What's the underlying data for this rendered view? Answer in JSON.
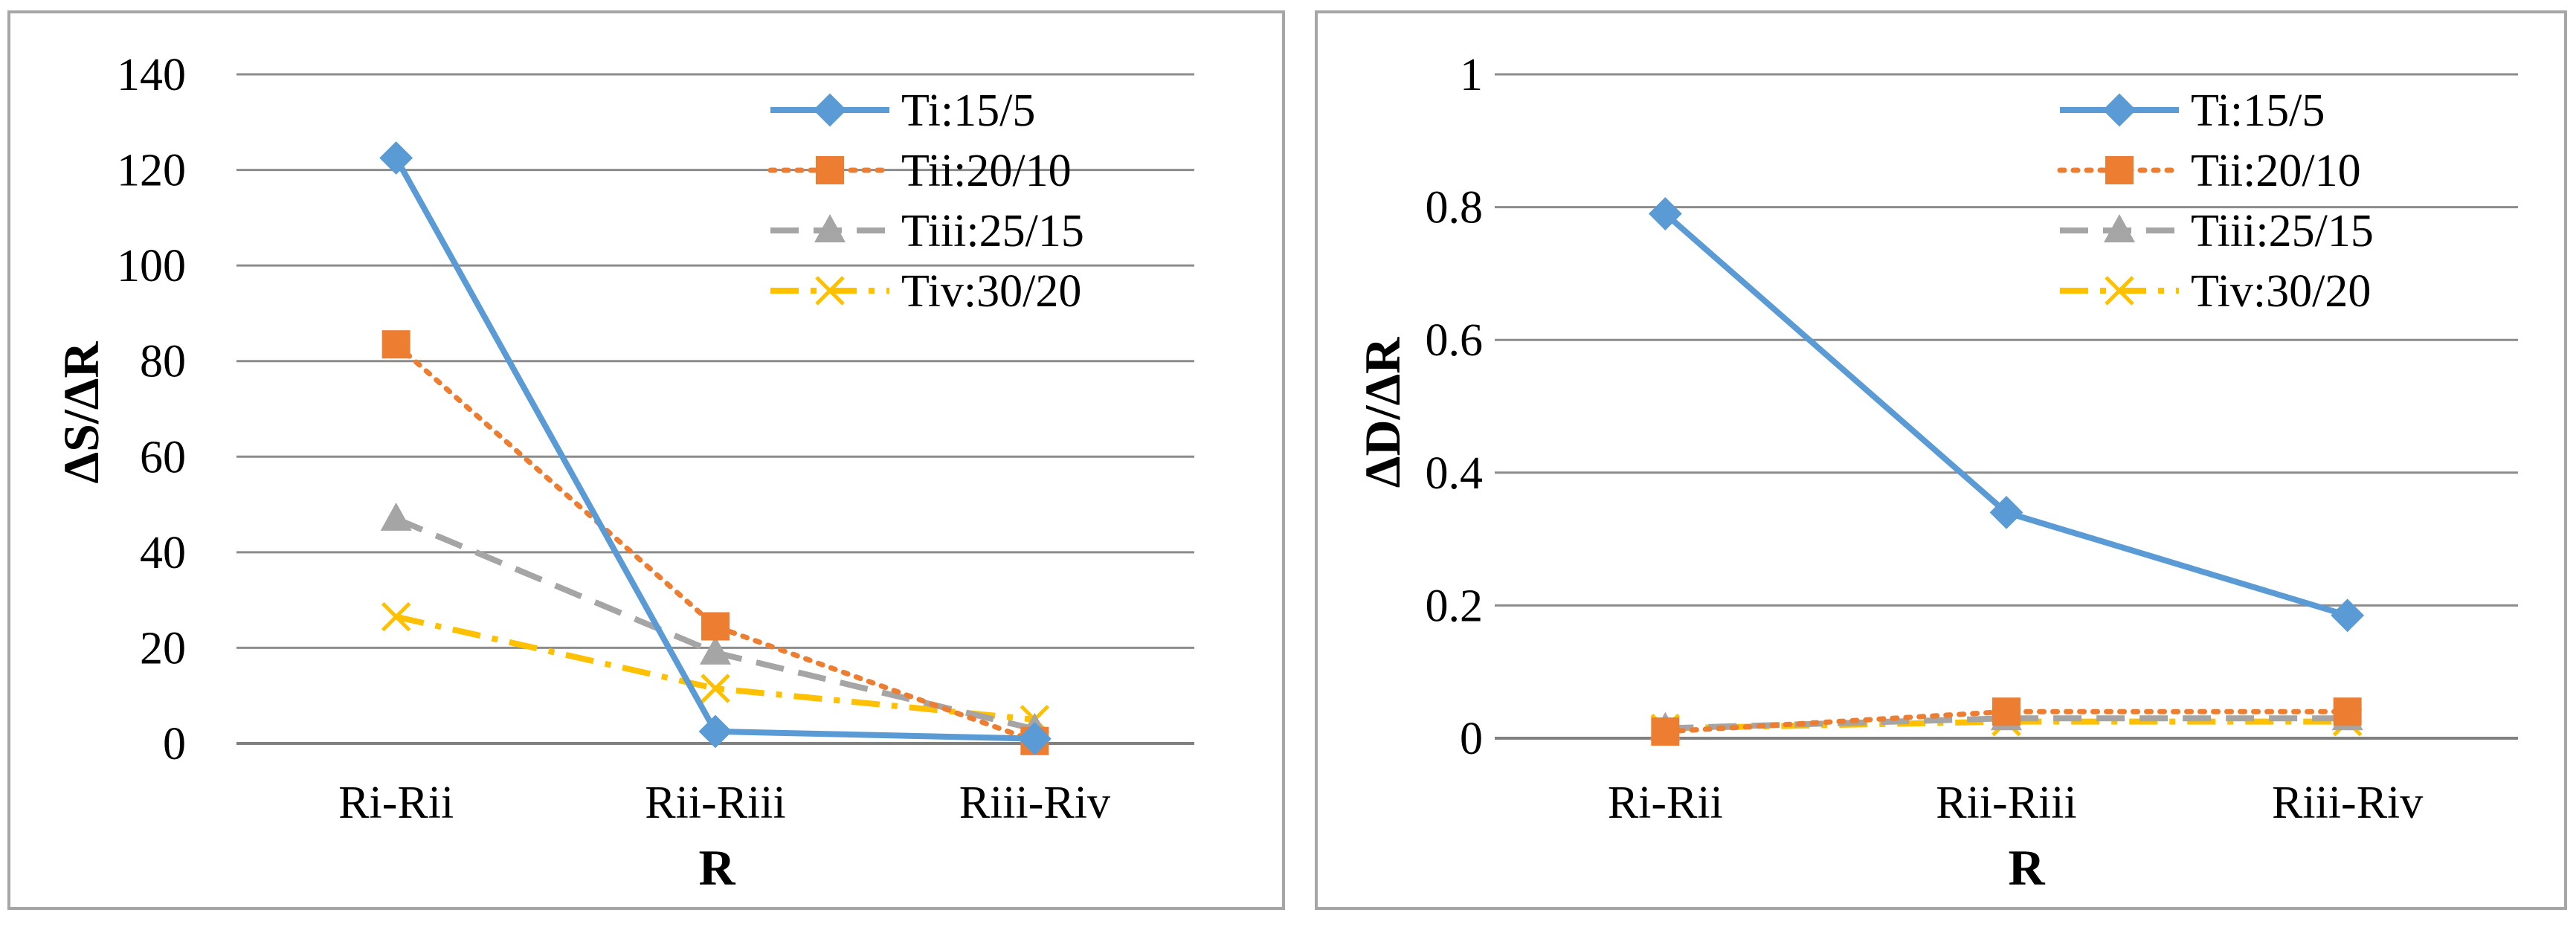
{
  "chart_data": [
    {
      "type": "line",
      "categories": [
        "Ri-Rii",
        "Rii-Riii",
        "Riii-Riv"
      ],
      "series": [
        {
          "name": "Ti:15/5",
          "values": [
            122.5,
            2.5,
            1.0
          ],
          "color": "#5B9BD5",
          "dash": "solid",
          "marker": "diamond"
        },
        {
          "name": "Tii:20/10",
          "values": [
            83.5,
            24.5,
            0.5
          ],
          "color": "#ED7D31",
          "dash": "dotted",
          "marker": "square"
        },
        {
          "name": "Tiii:25/15",
          "values": [
            47,
            19,
            3
          ],
          "color": "#A5A5A5",
          "dash": "dashed",
          "marker": "triangle"
        },
        {
          "name": "Tiv:30/20",
          "values": [
            26.5,
            11.5,
            5
          ],
          "color": "#FFC000",
          "dash": "dashdot",
          "marker": "x"
        }
      ],
      "title": "",
      "xlabel": "R",
      "ylabel": "ΔS/ΔR",
      "ylim": [
        0,
        140
      ],
      "yticks": [
        "0",
        "20",
        "40",
        "60",
        "80",
        "100",
        "120",
        "140"
      ],
      "grid": true,
      "legend": "top-right"
    },
    {
      "type": "line",
      "categories": [
        "Ri-Rii",
        "Rii-Riii",
        "Riii-Riv"
      ],
      "series": [
        {
          "name": "Ti:15/5",
          "values": [
            0.79,
            0.34,
            0.185
          ],
          "color": "#5B9BD5",
          "dash": "solid",
          "marker": "diamond"
        },
        {
          "name": "Tii:20/10",
          "values": [
            0.01,
            0.04,
            0.04
          ],
          "color": "#ED7D31",
          "dash": "dotted",
          "marker": "square"
        },
        {
          "name": "Tiii:25/15",
          "values": [
            0.015,
            0.03,
            0.03
          ],
          "color": "#A5A5A5",
          "dash": "dashed",
          "marker": "triangle"
        },
        {
          "name": "Tiv:30/20",
          "values": [
            0.015,
            0.025,
            0.025
          ],
          "color": "#FFC000",
          "dash": "dashdot",
          "marker": "x"
        }
      ],
      "title": "",
      "xlabel": "R",
      "ylabel": "ΔD/ΔR",
      "ylim": [
        0,
        1
      ],
      "yticks": [
        "0",
        "0.2",
        "0.4",
        "0.6",
        "0.8",
        "1"
      ],
      "grid": true,
      "legend": "top-right"
    }
  ]
}
